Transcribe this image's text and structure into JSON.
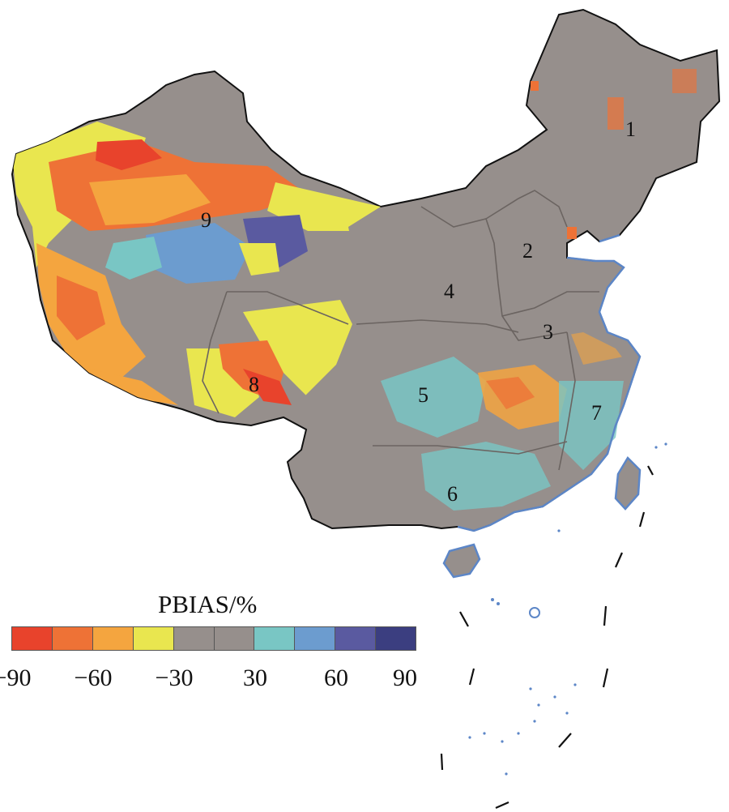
{
  "regions": [
    "1",
    "2",
    "3",
    "4",
    "5",
    "6",
    "7",
    "8",
    "9"
  ],
  "legend": {
    "title": "PBIAS/%",
    "colors": [
      "#e8432c",
      "#ee7236",
      "#f4a53f",
      "#e9e64f",
      "#968f8c",
      "#968f8c",
      "#79c6c4",
      "#6c9ccf",
      "#5a5aa0",
      "#3b3e80"
    ],
    "ticks": [
      "−90",
      "−60",
      "−30",
      "30",
      "60",
      "90"
    ]
  }
}
